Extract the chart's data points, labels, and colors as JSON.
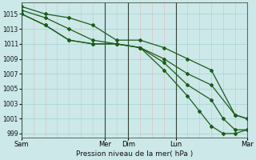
{
  "title": "Pression niveau de la mer( hPa )",
  "bg_color": "#cce8e8",
  "grid_color_h": "#99cccc",
  "grid_color_v": "#e8b8b8",
  "line_color": "#1a5c1a",
  "ylim": [
    998.5,
    1016.5
  ],
  "yticks": [
    999,
    1001,
    1003,
    1005,
    1007,
    1009,
    1011,
    1013,
    1015
  ],
  "x_labels": [
    "Sam",
    "Mer",
    "Dim",
    "Lun",
    "Mar"
  ],
  "day_positions": [
    0,
    3.5,
    4.5,
    6.5,
    9.5
  ],
  "series": [
    {
      "x": [
        0,
        1,
        2,
        3,
        4,
        5,
        6,
        7,
        8,
        9,
        9.5
      ],
      "y": [
        1016.0,
        1015.0,
        1014.5,
        1013.5,
        1011.5,
        1011.5,
        1010.5,
        1009.0,
        1007.5,
        1001.5,
        1001.0
      ]
    },
    {
      "x": [
        0,
        1,
        2,
        3,
        4,
        5,
        6,
        7,
        8,
        9,
        9.5
      ],
      "y": [
        1015.5,
        1014.5,
        1013.0,
        1011.5,
        1011.0,
        1010.5,
        1009.0,
        1007.0,
        1005.5,
        1001.5,
        1001.0
      ]
    },
    {
      "x": [
        0,
        1,
        2,
        3,
        4,
        5,
        6,
        7,
        8,
        8.5,
        9,
        9.5
      ],
      "y": [
        1015.0,
        1013.5,
        1011.5,
        1011.0,
        1011.0,
        1010.5,
        1008.5,
        1005.5,
        1003.5,
        1001.0,
        999.5,
        999.5
      ]
    },
    {
      "x": [
        0,
        1,
        2,
        3,
        4,
        5,
        6,
        7,
        7.5,
        8,
        8.5,
        9,
        9.5
      ],
      "y": [
        1015.0,
        1013.5,
        1011.5,
        1011.0,
        1011.0,
        1010.5,
        1007.5,
        1004.0,
        1002.0,
        1000.0,
        999.0,
        999.0,
        999.5
      ]
    }
  ],
  "grid_x": [
    0,
    0.5,
    1,
    1.5,
    2,
    2.5,
    3,
    3.5,
    4,
    4.5,
    5,
    5.5,
    6,
    6.5,
    7,
    7.5,
    8,
    8.5,
    9,
    9.5
  ],
  "marker": "D",
  "markersize": 2.0,
  "linewidth": 0.9
}
